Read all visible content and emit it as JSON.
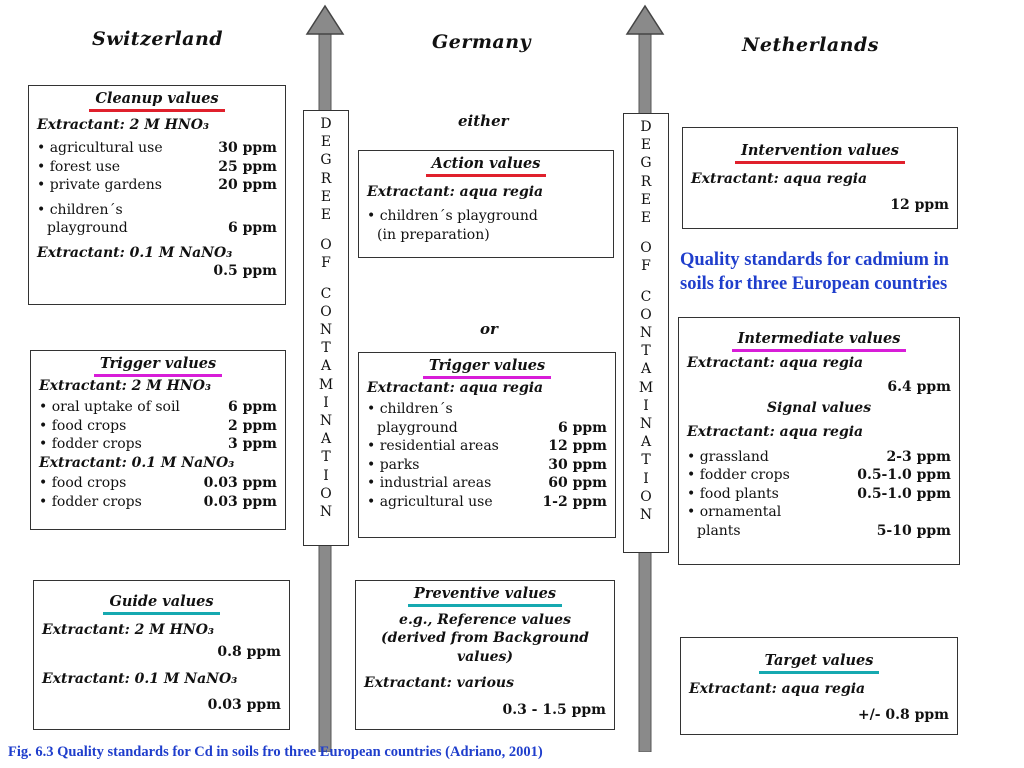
{
  "countries": {
    "switzerland": "Switzerland",
    "germany": "Germany",
    "netherlands": "Netherlands"
  },
  "axis_label": [
    "D",
    "E",
    "G",
    "R",
    "E",
    "E",
    "",
    "O",
    "F",
    "",
    "C",
    "O",
    "N",
    "T",
    "A",
    "M",
    "I",
    "N",
    "A",
    "T",
    "I",
    "O",
    "N"
  ],
  "connectors": {
    "either": "either",
    "or": "or"
  },
  "heading": {
    "line1": "Quality standards for cadmium in",
    "line2": "soils for three European countries"
  },
  "caption": "Fig. 6.3 Quality standards for Cd in soils fro three European countries (Adriano, 2001)",
  "colors": {
    "red": "#e0202c",
    "magenta": "#d81dd8",
    "cyan": "#16a9b0",
    "blue_text": "#1f3ecc",
    "arrow": "#8a8a8a"
  },
  "switzerland": {
    "cleanup": {
      "title": "Cleanup values",
      "extractant1": "Extractant: 2 M HNO₃",
      "rows1": [
        {
          "label": "• agricultural use",
          "value": "30 ppm"
        },
        {
          "label": "• forest use",
          "value": "25 ppm"
        },
        {
          "label": "• private gardens",
          "value": "20 ppm"
        }
      ],
      "child_line1": "• children´s",
      "child_line2": "playground",
      "child_value": "6 ppm",
      "extractant2": "Extractant: 0.1 M NaNO₃",
      "value2": "0.5 ppm"
    },
    "trigger": {
      "title": "Trigger values",
      "extractant1": "Extractant: 2 M HNO₃",
      "rows1": [
        {
          "label": "• oral uptake of soil",
          "value": "6 ppm"
        },
        {
          "label": "• food crops",
          "value": "2 ppm"
        },
        {
          "label": "• fodder crops",
          "value": "3 ppm"
        }
      ],
      "extractant2": "Extractant: 0.1 M NaNO₃",
      "rows2": [
        {
          "label": "• food crops",
          "value": "0.03 ppm"
        },
        {
          "label": "• fodder crops",
          "value": "0.03 ppm"
        }
      ]
    },
    "guide": {
      "title": "Guide values",
      "extractant1": "Extractant: 2 M HNO₃",
      "value1": "0.8 ppm",
      "extractant2": "Extractant: 0.1 M NaNO₃",
      "value2": "0.03 ppm"
    }
  },
  "germany": {
    "action": {
      "title": "Action values",
      "extractant": "Extractant: aqua regia",
      "line1": "• children´s playground",
      "line2": "(in preparation)"
    },
    "trigger": {
      "title": "Trigger values",
      "extractant": "Extractant: aqua regia",
      "child_line1": "• children´s",
      "child_line2": "playground",
      "child_value": "6 ppm",
      "rows": [
        {
          "label": "• residential areas",
          "value": "12 ppm"
        },
        {
          "label": "• parks",
          "value": "30 ppm"
        },
        {
          "label": "• industrial areas",
          "value": "60 ppm"
        },
        {
          "label": "• agricultural use",
          "value": "1-2 ppm"
        }
      ]
    },
    "preventive": {
      "title": "Preventive values",
      "desc1": "e.g., Reference values",
      "desc2": "(derived from Background",
      "desc3": "values)",
      "extractant": "Extractant: various",
      "value": "0.3 - 1.5 ppm"
    }
  },
  "netherlands": {
    "intervention": {
      "title": "Intervention values",
      "extractant": "Extractant: aqua regia",
      "value": "12 ppm"
    },
    "intermediate": {
      "title": "Intermediate values",
      "extractant": "Extractant: aqua regia",
      "value": "6.4 ppm",
      "signal_title": "Signal values",
      "signal_extractant": "Extractant: aqua regia",
      "rows": [
        {
          "label": "• grassland",
          "value": "2-3 ppm"
        },
        {
          "label": "• fodder crops",
          "value": "0.5-1.0 ppm"
        },
        {
          "label": "• food plants",
          "value": "0.5-1.0 ppm"
        }
      ],
      "orn_line1": "• ornamental",
      "orn_line2": "plants",
      "orn_value": "5-10 ppm"
    },
    "target": {
      "title": "Target values",
      "extractant": "Extractant: aqua regia",
      "value": "+/- 0.8 ppm"
    }
  }
}
